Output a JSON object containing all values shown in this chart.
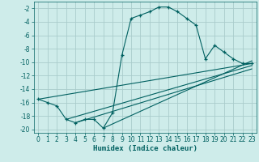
{
  "xlabel": "Humidex (Indice chaleur)",
  "bg_color": "#ceecea",
  "line_color": "#006060",
  "grid_color": "#aacccc",
  "xlim": [
    -0.5,
    23.5
  ],
  "ylim": [
    -20.5,
    -1.0
  ],
  "xticks": [
    0,
    1,
    2,
    3,
    4,
    5,
    6,
    7,
    8,
    9,
    10,
    11,
    12,
    13,
    14,
    15,
    16,
    17,
    18,
    19,
    20,
    21,
    22,
    23
  ],
  "yticks": [
    -20,
    -18,
    -16,
    -14,
    -12,
    -10,
    -8,
    -6,
    -4,
    -2
  ],
  "series": [
    [
      0,
      -15.5
    ],
    [
      1,
      -16.0
    ],
    [
      2,
      -16.5
    ],
    [
      3,
      -18.5
    ],
    [
      4,
      -19.0
    ],
    [
      5,
      -18.5
    ],
    [
      6,
      -18.5
    ],
    [
      7,
      -19.8
    ],
    [
      8,
      -17.5
    ],
    [
      9,
      -9.0
    ],
    [
      10,
      -3.5
    ],
    [
      11,
      -3.0
    ],
    [
      12,
      -2.5
    ],
    [
      13,
      -1.8
    ],
    [
      14,
      -1.8
    ],
    [
      15,
      -2.5
    ],
    [
      16,
      -3.5
    ],
    [
      17,
      -4.5
    ],
    [
      18,
      -9.5
    ],
    [
      19,
      -7.5
    ],
    [
      20,
      -8.5
    ],
    [
      21,
      -9.5
    ],
    [
      22,
      -10.2
    ],
    [
      23,
      -10.2
    ]
  ],
  "lines": [
    {
      "x": [
        0,
        23
      ],
      "y": [
        -15.5,
        -10.2
      ]
    },
    {
      "x": [
        3,
        23
      ],
      "y": [
        -18.5,
        -10.5
      ]
    },
    {
      "x": [
        4,
        23
      ],
      "y": [
        -19.0,
        -11.0
      ]
    },
    {
      "x": [
        7,
        23
      ],
      "y": [
        -19.8,
        -9.8
      ]
    }
  ],
  "xlabel_fontsize": 6.5,
  "tick_fontsize": 5.5
}
